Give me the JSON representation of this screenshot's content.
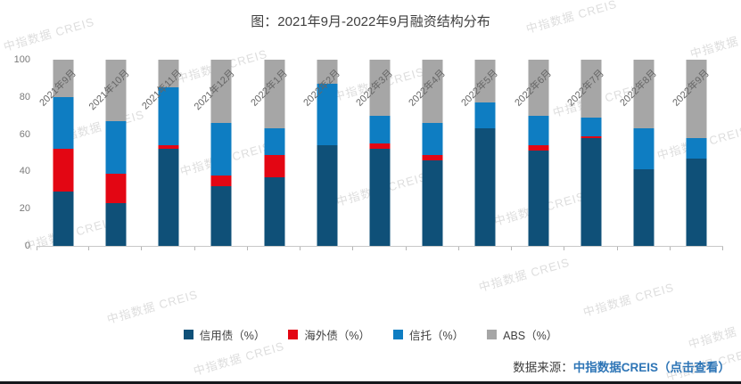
{
  "watermark": {
    "text": "中指数据 CREIS"
  },
  "title": "图：2021年9月-2022年9月融资结构分布",
  "source": {
    "label": "数据来源：",
    "link_text": "中指数据CREIS（点击查看）",
    "link_color": "#2e75b6"
  },
  "colors": {
    "credit_bond": "#0f5078",
    "overseas_bond": "#e30613",
    "trust": "#0e7dc2",
    "abs": "#a6a6a6",
    "axis_text": "#7a7a7a",
    "title_text": "#404040"
  },
  "chart_data": {
    "type": "bar",
    "stacked": true,
    "title": "图：2021年9月-2022年9月融资结构分布",
    "categories": [
      "2021年9月",
      "2021年10月",
      "2021年11月",
      "2021年12月",
      "2022年1月",
      "2022年2月",
      "2022年3月",
      "2022年4月",
      "2022年5月",
      "2022年6月",
      "2022年7月",
      "2022年8月",
      "2022年9月"
    ],
    "series": [
      {
        "name": "信用债（%）",
        "color": "#0f5078",
        "values": [
          29,
          23,
          52,
          32,
          37,
          54,
          52,
          46,
          63,
          51,
          58,
          41,
          47
        ]
      },
      {
        "name": "海外债（%）",
        "color": "#e30613",
        "values": [
          23,
          16,
          2,
          6,
          12,
          0,
          3,
          3,
          0,
          3,
          1,
          0,
          0
        ]
      },
      {
        "name": "信托（%）",
        "color": "#0e7dc2",
        "values": [
          28,
          28,
          31,
          28,
          14,
          33,
          15,
          17,
          14,
          16,
          10,
          22,
          11
        ]
      },
      {
        "name": "ABS（%）",
        "color": "#a6a6a6",
        "values": [
          20,
          33,
          15,
          34,
          37,
          13,
          30,
          34,
          23,
          30,
          31,
          37,
          42
        ]
      }
    ],
    "xlabel": "",
    "ylabel": "",
    "ylim": [
      0,
      100
    ],
    "yticks": [
      0,
      20,
      40,
      60,
      80,
      100
    ],
    "grid": false,
    "legend_position": "bottom"
  }
}
